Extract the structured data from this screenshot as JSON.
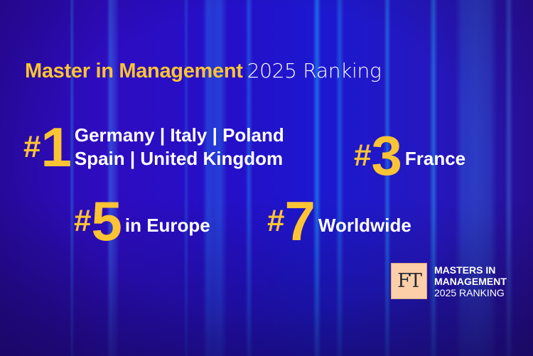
{
  "title": {
    "highlight": "Master in Management",
    "rest": "2025 Ranking"
  },
  "rankings": [
    {
      "hash": "#",
      "number": "1",
      "lines": [
        "Germany | Italy | Poland",
        "Spain | United Kingdom"
      ]
    },
    {
      "hash": "#",
      "number": "3",
      "lines": [
        "France"
      ]
    },
    {
      "hash": "#",
      "number": "5",
      "lines": [
        "in Europe"
      ]
    },
    {
      "hash": "#",
      "number": "7",
      "lines": [
        "Worldwide"
      ]
    }
  ],
  "badge": {
    "logo": "FT",
    "line1": "MASTERS IN",
    "line2": "MANAGEMENT",
    "line3": "2025 RANKING"
  },
  "colors": {
    "accent": "#fcc433",
    "text": "#ffffff",
    "background": "#2410c8",
    "ft_logo_bg": "#fccfa8"
  }
}
